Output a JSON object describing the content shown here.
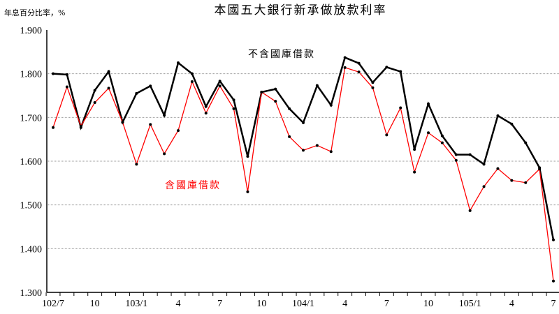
{
  "chart_data": {
    "type": "line",
    "title": "本國五大銀行新承做放款利率",
    "ylabel": "年息百分比率，%",
    "xlabel": "",
    "ylim": [
      1.3,
      1.9
    ],
    "yticks": [
      "1.300",
      "1.400",
      "1.500",
      "1.600",
      "1.700",
      "1.800",
      "1.900"
    ],
    "grid": true,
    "x": [
      "102/7",
      "102/8",
      "102/9",
      "102/10",
      "102/11",
      "102/12",
      "103/1",
      "103/2",
      "103/3",
      "103/4",
      "103/5",
      "103/6",
      "103/7",
      "103/8",
      "103/9",
      "103/10",
      "103/11",
      "103/12",
      "104/1",
      "104/2",
      "104/3",
      "104/4",
      "104/5",
      "104/6",
      "104/7",
      "104/8",
      "104/9",
      "104/10",
      "104/11",
      "104/12",
      "105/1",
      "105/2",
      "105/3",
      "105/4",
      "105/5",
      "105/6",
      "105/7"
    ],
    "xtick_labels": [
      {
        "index": 0,
        "label": "102/7"
      },
      {
        "index": 3,
        "label": "10"
      },
      {
        "index": 6,
        "label": "103/1"
      },
      {
        "index": 9,
        "label": "4"
      },
      {
        "index": 12,
        "label": "7"
      },
      {
        "index": 15,
        "label": "10"
      },
      {
        "index": 18,
        "label": "104/1"
      },
      {
        "index": 21,
        "label": "4"
      },
      {
        "index": 24,
        "label": "7"
      },
      {
        "index": 27,
        "label": "10"
      },
      {
        "index": 30,
        "label": "105/1"
      },
      {
        "index": 33,
        "label": "4"
      },
      {
        "index": 36,
        "label": "7"
      }
    ],
    "series": [
      {
        "name": "不含國庫借款",
        "color": "#000000",
        "values": [
          1.8,
          1.798,
          1.677,
          1.762,
          1.805,
          1.689,
          1.755,
          1.772,
          1.705,
          1.825,
          1.8,
          1.725,
          1.783,
          1.74,
          1.611,
          1.758,
          1.765,
          1.72,
          1.688,
          1.773,
          1.728,
          1.837,
          1.824,
          1.78,
          1.815,
          1.805,
          1.627,
          1.731,
          1.658,
          1.615,
          1.615,
          1.593,
          1.704,
          1.685,
          1.642,
          1.585,
          1.42
        ]
      },
      {
        "name": "含國庫借款",
        "color": "#ff0000",
        "values": [
          1.677,
          1.77,
          1.68,
          1.734,
          1.767,
          1.689,
          1.593,
          1.684,
          1.617,
          1.67,
          1.782,
          1.71,
          1.772,
          1.72,
          1.53,
          1.758,
          1.737,
          1.656,
          1.625,
          1.636,
          1.622,
          1.814,
          1.804,
          1.768,
          1.66,
          1.722,
          1.575,
          1.665,
          1.642,
          1.602,
          1.487,
          1.542,
          1.583,
          1.556,
          1.551,
          1.582,
          1.326
        ]
      }
    ]
  }
}
